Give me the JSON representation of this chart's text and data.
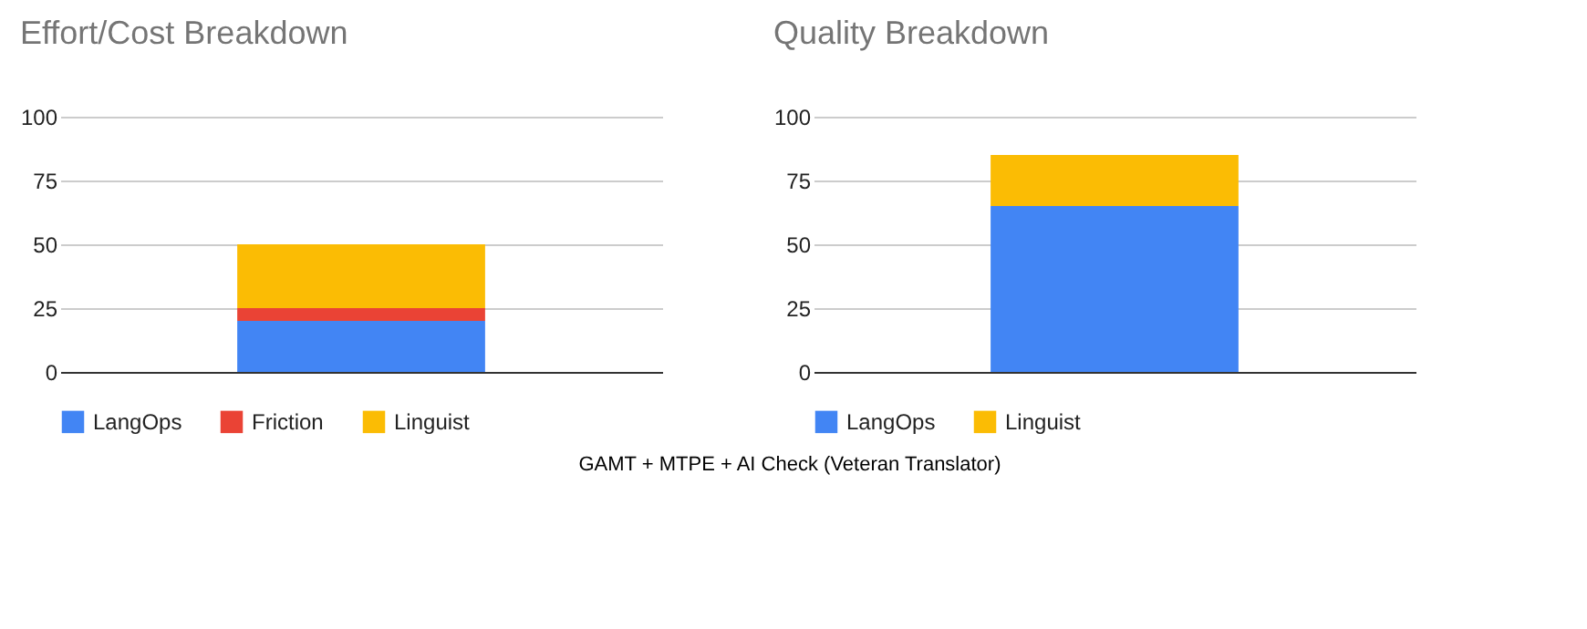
{
  "chart_data": [
    {
      "type": "bar",
      "title": "Effort/Cost Breakdown",
      "categories": [
        null
      ],
      "stacked": true,
      "ylim": [
        0,
        100
      ],
      "yticks": [
        0,
        25,
        50,
        75,
        100
      ],
      "grid": "y",
      "legend": "bottom",
      "series": [
        {
          "name": "LangOps",
          "color": "#4285f4",
          "values": [
            20
          ]
        },
        {
          "name": "Friction",
          "color": "#ea4335",
          "values": [
            5
          ]
        },
        {
          "name": "Linguist",
          "color": "#fbbc04",
          "values": [
            25
          ]
        }
      ],
      "annotations": [
        "GAMT + MTPE + AI Check (Veteran Translator)"
      ]
    },
    {
      "type": "bar",
      "title": "Quality Breakdown",
      "categories": [
        null
      ],
      "stacked": true,
      "ylim": [
        0,
        100
      ],
      "yticks": [
        0,
        25,
        50,
        75,
        100
      ],
      "grid": "y",
      "legend": "bottom",
      "series": [
        {
          "name": "LangOps",
          "color": "#4285f4",
          "values": [
            65
          ]
        },
        {
          "name": "Linguist",
          "color": "#fbbc04",
          "values": [
            20
          ]
        }
      ]
    }
  ]
}
